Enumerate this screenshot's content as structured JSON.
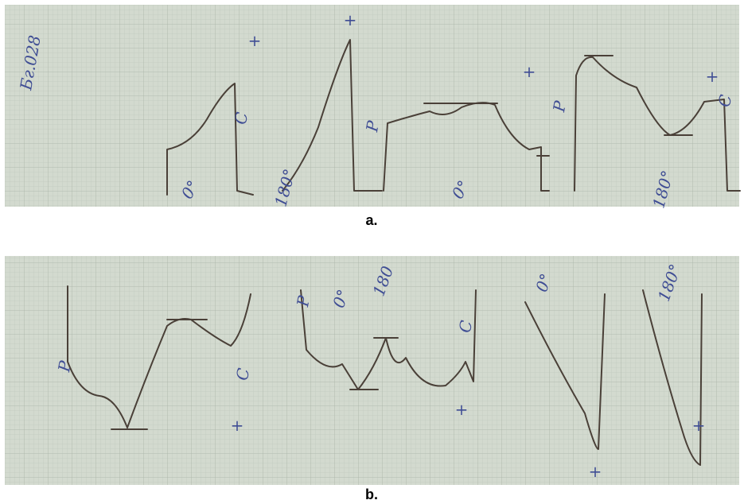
{
  "panels": [
    {
      "caption": "a.",
      "annotations": [
        "Бг.028",
        "0°",
        "180°",
        "0°",
        "180°",
        "+",
        "+",
        "+",
        "+",
        "P",
        "P",
        "C",
        "C"
      ]
    },
    {
      "caption": "b.",
      "annotations": [
        "0°",
        "180",
        "0°",
        "180°",
        "P",
        "P",
        "C",
        "C",
        "+",
        "+",
        "+",
        "+"
      ]
    }
  ]
}
